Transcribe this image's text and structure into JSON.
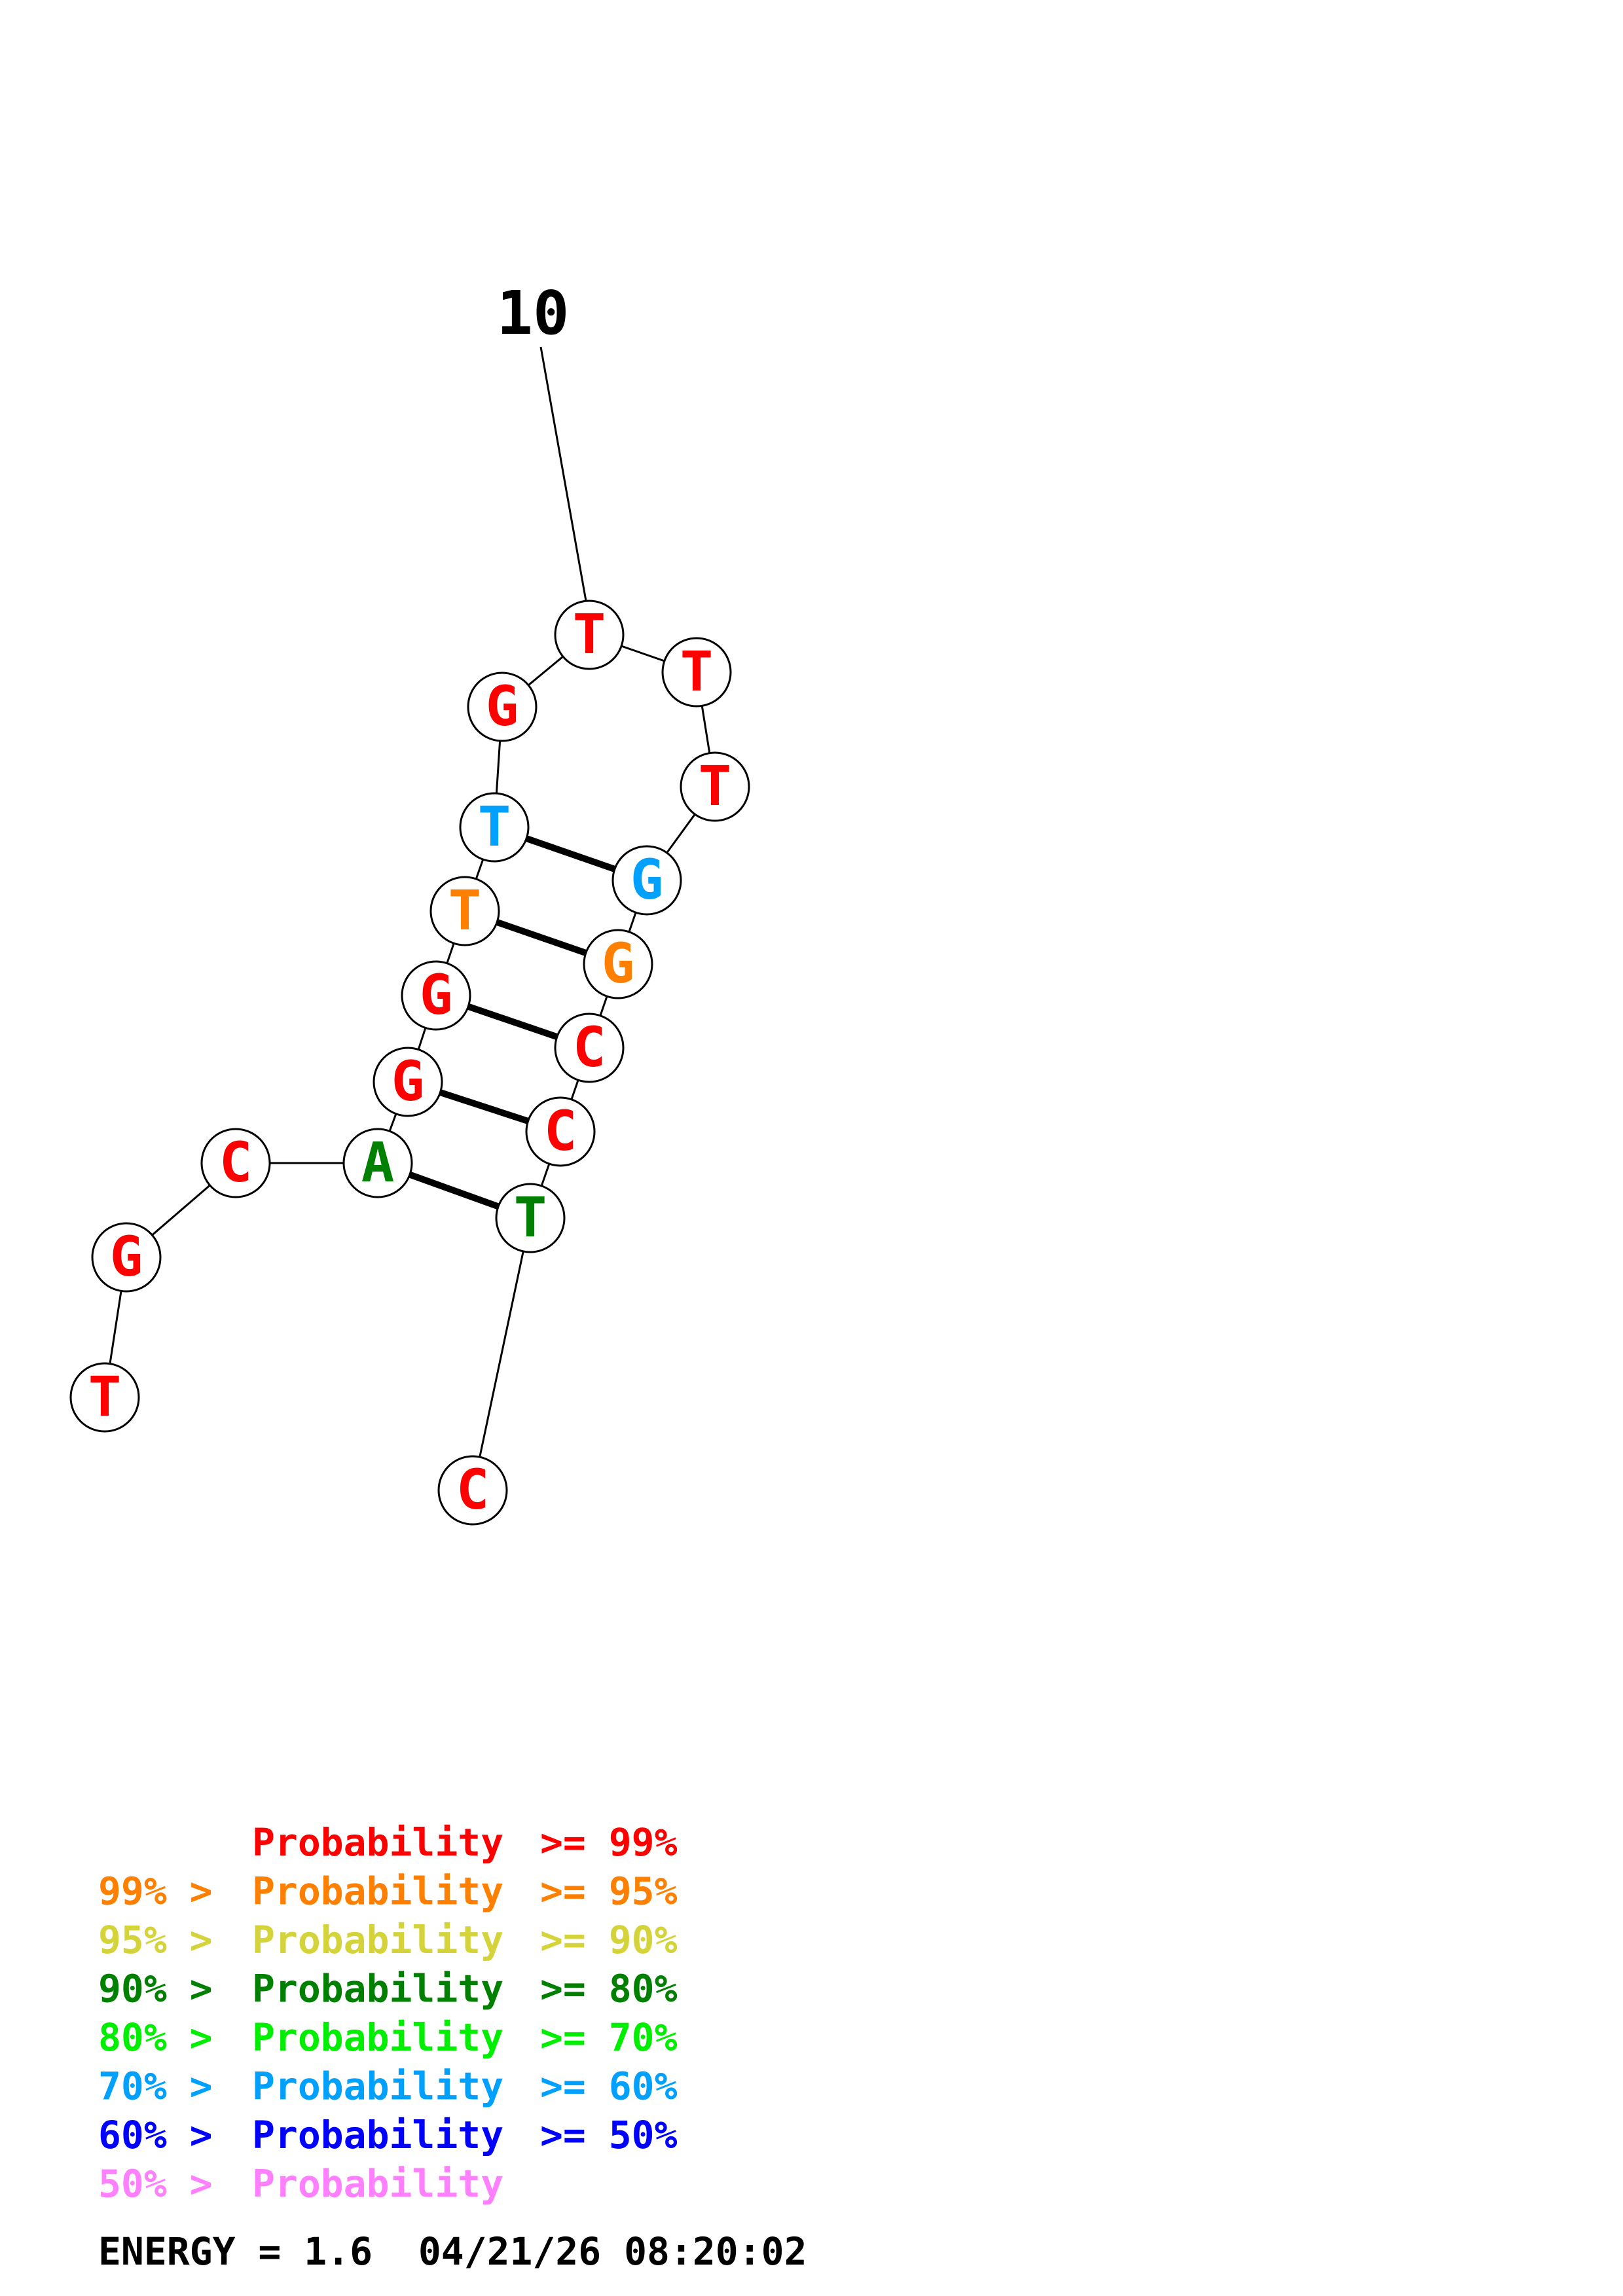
{
  "colors": {
    "p99": "#ff0000",
    "p95": "#ff8000",
    "p90": "#d4d43a",
    "p80": "#008000",
    "p70": "#00ee00",
    "p60": "#00a0ff",
    "p50": "#0000ff",
    "plow": "#ff80ff"
  },
  "structure": {
    "position_label": "10",
    "nucleotides": [
      {
        "base": "T",
        "color": "p99"
      },
      {
        "base": "G",
        "color": "p99"
      },
      {
        "base": "C",
        "color": "p99"
      },
      {
        "base": "A",
        "color": "p80"
      },
      {
        "base": "G",
        "color": "p99"
      },
      {
        "base": "G",
        "color": "p99"
      },
      {
        "base": "T",
        "color": "p95"
      },
      {
        "base": "T",
        "color": "p60"
      },
      {
        "base": "G",
        "color": "p99"
      },
      {
        "base": "T",
        "color": "p99"
      },
      {
        "base": "T",
        "color": "p99"
      },
      {
        "base": "T",
        "color": "p99"
      },
      {
        "base": "G",
        "color": "p60"
      },
      {
        "base": "G",
        "color": "p95"
      },
      {
        "base": "C",
        "color": "p99"
      },
      {
        "base": "C",
        "color": "p99"
      },
      {
        "base": "T",
        "color": "p80"
      },
      {
        "base": "C",
        "color": "p99"
      }
    ],
    "pairs": [
      [
        4,
        17
      ],
      [
        5,
        16
      ],
      [
        6,
        15
      ],
      [
        7,
        14
      ],
      [
        8,
        13
      ]
    ]
  },
  "legend": [
    {
      "prefix": "",
      "label": "Probability",
      "suffix": ">= 99%",
      "color": "p99"
    },
    {
      "prefix": "99% >",
      "label": "Probability",
      "suffix": ">= 95%",
      "color": "p95"
    },
    {
      "prefix": "95% >",
      "label": "Probability",
      "suffix": ">= 90%",
      "color": "p90"
    },
    {
      "prefix": "90% >",
      "label": "Probability",
      "suffix": ">= 80%",
      "color": "p80"
    },
    {
      "prefix": "80% >",
      "label": "Probability",
      "suffix": ">= 70%",
      "color": "p70"
    },
    {
      "prefix": "70% >",
      "label": "Probability",
      "suffix": ">= 60%",
      "color": "p60"
    },
    {
      "prefix": "60% >",
      "label": "Probability",
      "suffix": ">= 50%",
      "color": "p50"
    },
    {
      "prefix": "50% >",
      "label": "Probability",
      "suffix": "",
      "color": "plow"
    }
  ],
  "energy_line": "ENERGY = 1.6  04/21/26 08:20:02"
}
